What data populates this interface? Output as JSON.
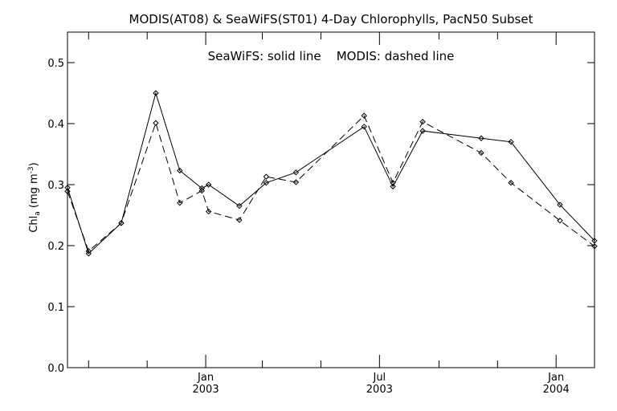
{
  "chart_data": {
    "type": "line",
    "title": "MODIS(AT08) & SeaWiFS(ST01) 4-Day Chlorophylls, PacN50 Subset",
    "annotation": "SeaWiFS: solid line    MODIS: dashed line",
    "ylabel_main": "Chl",
    "ylabel_sub": "a",
    "ylabel_unit_pre": " (mg m",
    "ylabel_unit_sup": "-3",
    "ylabel_unit_post": ")",
    "ylim": [
      0.0,
      0.55
    ],
    "xlim": [
      "2002-08-10",
      "2004-02-10"
    ],
    "y_ticks": [
      "0.0",
      "0.1",
      "0.2",
      "0.3",
      "0.4",
      "0.5"
    ],
    "x_major_ticks": [
      {
        "date": "2003-01-01",
        "label": "Jan",
        "year": "2003"
      },
      {
        "date": "2003-07-01",
        "label": "Jul",
        "year": "2003"
      },
      {
        "date": "2004-01-01",
        "label": "Jan",
        "year": "2004"
      }
    ],
    "x_minor_ticks": [
      "2002-09-01",
      "2002-11-01",
      "2003-03-01",
      "2003-05-01",
      "2003-09-01",
      "2003-11-01"
    ],
    "grid": false,
    "series": [
      {
        "name": "SeaWiFS",
        "line_style": "solid",
        "points": [
          {
            "x": "2002-08-10",
            "y": 0.295
          },
          {
            "x": "2002-09-01",
            "y": 0.187
          },
          {
            "x": "2002-10-05",
            "y": 0.237
          },
          {
            "x": "2002-11-10",
            "y": 0.45
          },
          {
            "x": "2002-12-05",
            "y": 0.323
          },
          {
            "x": "2002-12-28",
            "y": 0.294
          },
          {
            "x": "2003-01-04",
            "y": 0.3
          },
          {
            "x": "2003-02-05",
            "y": 0.265
          },
          {
            "x": "2003-03-05",
            "y": 0.303
          },
          {
            "x": "2003-04-05",
            "y": 0.32
          },
          {
            "x": "2003-06-15",
            "y": 0.395
          },
          {
            "x": "2003-07-15",
            "y": 0.297
          },
          {
            "x": "2003-08-15",
            "y": 0.388
          },
          {
            "x": "2003-10-15",
            "y": 0.376
          },
          {
            "x": "2003-11-15",
            "y": 0.37
          },
          {
            "x": "2004-01-05",
            "y": 0.267
          },
          {
            "x": "2004-02-10",
            "y": 0.208
          }
        ]
      },
      {
        "name": "MODIS",
        "line_style": "dashed",
        "points": [
          {
            "x": "2002-08-10",
            "y": 0.289
          },
          {
            "x": "2002-09-01",
            "y": 0.191
          },
          {
            "x": "2002-10-05",
            "y": 0.237
          },
          {
            "x": "2002-11-10",
            "y": 0.401
          },
          {
            "x": "2002-12-05",
            "y": 0.27
          },
          {
            "x": "2002-12-28",
            "y": 0.29
          },
          {
            "x": "2003-01-04",
            "y": 0.256
          },
          {
            "x": "2003-02-05",
            "y": 0.242
          },
          {
            "x": "2003-03-05",
            "y": 0.313
          },
          {
            "x": "2003-04-05",
            "y": 0.304
          },
          {
            "x": "2003-06-15",
            "y": 0.413
          },
          {
            "x": "2003-07-15",
            "y": 0.303
          },
          {
            "x": "2003-08-15",
            "y": 0.403
          },
          {
            "x": "2003-10-15",
            "y": 0.352
          },
          {
            "x": "2003-11-15",
            "y": 0.303
          },
          {
            "x": "2004-01-05",
            "y": 0.241
          },
          {
            "x": "2004-02-10",
            "y": 0.199
          }
        ]
      }
    ]
  }
}
